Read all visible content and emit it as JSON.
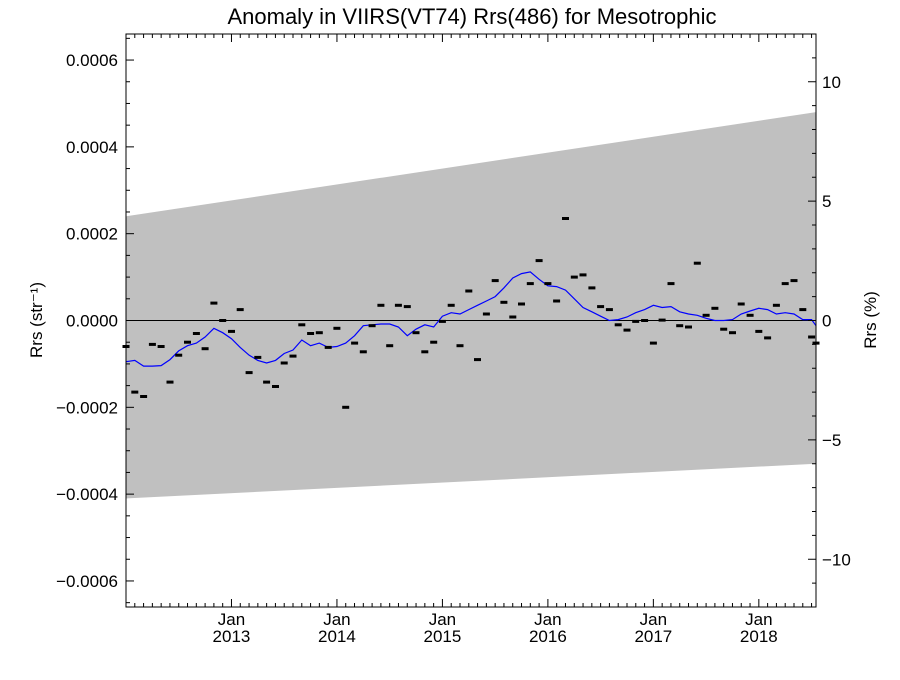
{
  "chart_data": {
    "type": "scatter",
    "title": "Anomaly in VIIRS(VT74) Rrs(486) for Mesotrophic",
    "ylabel_left": "Rrs (str⁻¹)",
    "ylabel_right": "Rrs (%)",
    "xlim": [
      2012.0,
      2018.542
    ],
    "ylim_left": [
      -0.00066,
      0.00066
    ],
    "ylim_right": [
      -12,
      12
    ],
    "grid": false,
    "left_ticks": [
      {
        "value": 0.0006,
        "label": "0.0006"
      },
      {
        "value": 0.0004,
        "label": "0.0004"
      },
      {
        "value": 0.0002,
        "label": "0.0002"
      },
      {
        "value": 0.0,
        "label": "0.0000"
      },
      {
        "value": -0.0002,
        "label": "−0.0002"
      },
      {
        "value": -0.0004,
        "label": "−0.0004"
      },
      {
        "value": -0.0006,
        "label": "−0.0006"
      }
    ],
    "right_ticks": [
      {
        "value": 10,
        "label": "10"
      },
      {
        "value": 5,
        "label": "5"
      },
      {
        "value": 0,
        "label": "0"
      },
      {
        "value": -5,
        "label": "−5"
      },
      {
        "value": -10,
        "label": "−10"
      }
    ],
    "x_ticks": [
      {
        "value": 2013.0,
        "label1": "Jan",
        "label2": "2013"
      },
      {
        "value": 2014.0,
        "label1": "Jan",
        "label2": "2014"
      },
      {
        "value": 2015.0,
        "label1": "Jan",
        "label2": "2015"
      },
      {
        "value": 2016.0,
        "label1": "Jan",
        "label2": "2016"
      },
      {
        "value": 2017.0,
        "label1": "Jan",
        "label2": "2017"
      },
      {
        "value": 2018.0,
        "label1": "Jan",
        "label2": "2018"
      }
    ],
    "band": {
      "color": "#c0c0c0",
      "start": {
        "x": 2012.0,
        "upper": 0.00024,
        "lower": -0.00041
      },
      "end": {
        "x": 2018.542,
        "upper": 0.00048,
        "lower": -0.00033
      }
    },
    "zero_line": 0.0,
    "points": {
      "color": "#000000",
      "x": [
        2012.0,
        2012.083,
        2012.167,
        2012.25,
        2012.333,
        2012.417,
        2012.5,
        2012.583,
        2012.667,
        2012.75,
        2012.833,
        2012.917,
        2013.0,
        2013.083,
        2013.167,
        2013.25,
        2013.333,
        2013.417,
        2013.5,
        2013.583,
        2013.667,
        2013.75,
        2013.833,
        2013.917,
        2014.0,
        2014.083,
        2014.167,
        2014.25,
        2014.333,
        2014.417,
        2014.5,
        2014.583,
        2014.667,
        2014.75,
        2014.833,
        2014.917,
        2015.0,
        2015.083,
        2015.167,
        2015.25,
        2015.333,
        2015.417,
        2015.5,
        2015.583,
        2015.667,
        2015.75,
        2015.833,
        2015.917,
        2016.0,
        2016.083,
        2016.167,
        2016.25,
        2016.333,
        2016.417,
        2016.5,
        2016.583,
        2016.667,
        2016.75,
        2016.833,
        2016.917,
        2017.0,
        2017.083,
        2017.167,
        2017.25,
        2017.333,
        2017.417,
        2017.5,
        2017.583,
        2017.667,
        2017.75,
        2017.833,
        2017.917,
        2018.0,
        2018.083,
        2018.167,
        2018.25,
        2018.333,
        2018.417,
        2018.5,
        2018.542
      ],
      "y": [
        -6e-05,
        -0.000165,
        -0.000175,
        -5.5e-05,
        -6e-05,
        -0.000142,
        -8e-05,
        -5e-05,
        -3e-05,
        -6.5e-05,
        4e-05,
        0.0,
        -2.5e-05,
        2.5e-05,
        -0.00012,
        -8.5e-05,
        -0.000142,
        -0.000152,
        -9.8e-05,
        -8.2e-05,
        -1e-05,
        -3e-05,
        -2.8e-05,
        -6.2e-05,
        -1.8e-05,
        -0.0002,
        -5.2e-05,
        -7.2e-05,
        -1.2e-05,
        3.5e-05,
        -5.8e-05,
        3.5e-05,
        3.2e-05,
        -2.8e-05,
        -7.2e-05,
        -5e-05,
        -2e-06,
        3.5e-05,
        -5.8e-05,
        6.8e-05,
        -9e-05,
        1.5e-05,
        9.2e-05,
        4.2e-05,
        8e-06,
        3.8e-05,
        8.5e-05,
        0.000138,
        8.5e-05,
        4.5e-05,
        0.000235,
        0.0001,
        0.000105,
        7.5e-05,
        3.2e-05,
        2.5e-05,
        -1e-05,
        -2.2e-05,
        -2e-06,
        0.0,
        -5.2e-05,
        1e-06,
        8.5e-05,
        -1.2e-05,
        -1.5e-05,
        0.000132,
        1.2e-05,
        2.8e-05,
        -2e-05,
        -2.8e-05,
        3.8e-05,
        1.2e-05,
        -2.5e-05,
        -4e-05,
        3.5e-05,
        8.5e-05,
        9.2e-05,
        2.5e-05,
        -3.8e-05,
        -5.2e-05
      ]
    },
    "running_mean": {
      "color": "#0000ff",
      "x": [
        2012.0,
        2012.083,
        2012.167,
        2012.25,
        2012.333,
        2012.417,
        2012.5,
        2012.583,
        2012.667,
        2012.75,
        2012.833,
        2012.917,
        2013.0,
        2013.083,
        2013.167,
        2013.25,
        2013.333,
        2013.417,
        2013.5,
        2013.583,
        2013.667,
        2013.75,
        2013.833,
        2013.917,
        2014.0,
        2014.083,
        2014.167,
        2014.25,
        2014.333,
        2014.417,
        2014.5,
        2014.583,
        2014.667,
        2014.75,
        2014.833,
        2014.917,
        2015.0,
        2015.083,
        2015.167,
        2015.25,
        2015.333,
        2015.417,
        2015.5,
        2015.583,
        2015.667,
        2015.75,
        2015.833,
        2015.917,
        2016.0,
        2016.083,
        2016.167,
        2016.25,
        2016.333,
        2016.417,
        2016.5,
        2016.583,
        2016.667,
        2016.75,
        2016.833,
        2016.917,
        2017.0,
        2017.083,
        2017.167,
        2017.25,
        2017.333,
        2017.417,
        2017.5,
        2017.583,
        2017.667,
        2017.75,
        2017.833,
        2017.917,
        2018.0,
        2018.083,
        2018.167,
        2018.25,
        2018.333,
        2018.417,
        2018.5,
        2018.542
      ],
      "y": [
        -9.5e-05,
        -9.2e-05,
        -0.000105,
        -0.000105,
        -0.000104,
        -9e-05,
        -7e-05,
        -5.8e-05,
        -5.2e-05,
        -3.8e-05,
        -1.8e-05,
        -2.8e-05,
        -4.2e-05,
        -6.2e-05,
        -8e-05,
        -9.2e-05,
        -9.8e-05,
        -9.2e-05,
        -7.6e-05,
        -6.8e-05,
        -4.5e-05,
        -5.8e-05,
        -5.2e-05,
        -6.2e-05,
        -6e-05,
        -5.2e-05,
        -3.5e-05,
        -1.2e-05,
        -1e-05,
        -8e-06,
        -8e-06,
        -1.5e-05,
        -3.5e-05,
        -2e-05,
        -1e-05,
        -1.5e-05,
        1e-05,
        1.8e-05,
        1.5e-05,
        2.5e-05,
        3.5e-05,
        4.5e-05,
        5.5e-05,
        7.5e-05,
        9.8e-05,
        0.000108,
        0.000112,
        9.5e-05,
        8e-05,
        7.8e-05,
        7e-05,
        5e-05,
        3e-05,
        2e-05,
        1e-05,
        0.0,
        2e-06,
        8e-06,
        1.8e-05,
        2.5e-05,
        3.5e-05,
        3e-05,
        3.2e-05,
        2e-05,
        1.5e-05,
        1.2e-05,
        5e-06,
        0.0,
        0.0,
        2e-06,
        1.5e-05,
        2.2e-05,
        2.8e-05,
        2.5e-05,
        1.5e-05,
        1.8e-05,
        1.5e-05,
        2e-06,
        2e-06,
        -1.2e-05
      ]
    }
  }
}
